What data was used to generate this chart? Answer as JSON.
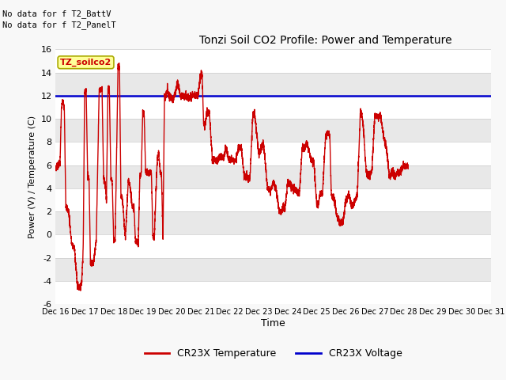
{
  "title": "Tonzi Soil CO2 Profile: Power and Temperature",
  "xlabel": "Time",
  "ylabel": "Power (V) / Temperature (C)",
  "annotations": [
    "No data for f T2_BattV",
    "No data for f T2_PanelT"
  ],
  "legend_label": "TZ_soilco2",
  "ylim": [
    -6,
    16
  ],
  "yticks": [
    -6,
    -4,
    -2,
    0,
    2,
    4,
    6,
    8,
    10,
    12,
    14,
    16
  ],
  "voltage_level": 12.0,
  "bg_color": "#ffffff",
  "plot_bg_color": "#e8e8e8",
  "stripe_color": "#d8d8d8",
  "line_color_temp": "#cc0000",
  "line_color_volt": "#0000cc",
  "legend_temp": "CR23X Temperature",
  "legend_volt": "CR23X Voltage",
  "xtick_labels": [
    "Dec 16",
    "Dec 17",
    "Dec 18",
    "Dec 19",
    "Dec 20",
    "Dec 21",
    "Dec 22",
    "Dec 23",
    "Dec 24",
    "Dec 25",
    "Dec 26",
    "Dec 27",
    "Dec 28",
    "Dec 29",
    "Dec 30",
    "Dec 31"
  ]
}
